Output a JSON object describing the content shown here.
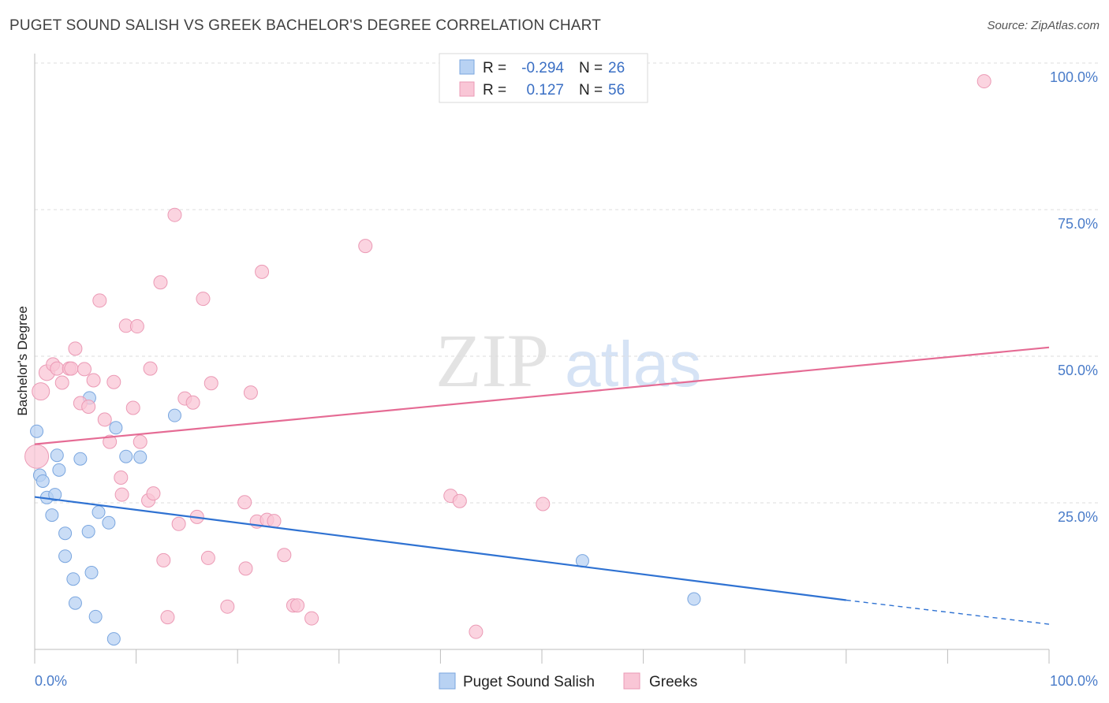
{
  "header": {
    "title": "PUGET SOUND SALISH VS GREEK BACHELOR'S DEGREE CORRELATION CHART",
    "source": "Source: ZipAtlas.com"
  },
  "watermark": {
    "part1": "ZIP",
    "part2": "atlas"
  },
  "legend_top": {
    "rows": [
      {
        "r_label": "R =",
        "r_value": "-0.294",
        "n_label": "N =",
        "n_value": "26",
        "series": "Puget Sound Salish"
      },
      {
        "r_label": "R =",
        "r_value": "0.127",
        "n_label": "N =",
        "n_value": "56",
        "series": "Greeks"
      }
    ]
  },
  "colors": {
    "blue_fill": "#b8d2f3",
    "blue_stroke": "#7aa6df",
    "blue_line": "#2f72d2",
    "pink_fill": "#f9c6d6",
    "pink_stroke": "#eb9ab5",
    "pink_line": "#e56b94",
    "accent_text": "#3a6fc4",
    "grid": "#dddddd"
  },
  "chart_data": {
    "type": "scatter",
    "title": "PUGET SOUND SALISH VS GREEK BACHELOR'S DEGREE CORRELATION CHART",
    "xlabel": "",
    "ylabel": "Bachelor's Degree",
    "xlim": [
      0,
      100
    ],
    "ylim": [
      0,
      100
    ],
    "x_tick_labels": [
      "0.0%",
      "100.0%"
    ],
    "y_ticks": [
      {
        "value": 25,
        "label": "25.0%"
      },
      {
        "value": 50,
        "label": "50.0%"
      },
      {
        "value": 75,
        "label": "75.0%"
      },
      {
        "value": 100,
        "label": "100.0%"
      }
    ],
    "grid": true,
    "legend_position": "bottom",
    "series": [
      {
        "name": "Puget Sound Salish",
        "color": "#b8d2f3",
        "points": [
          {
            "x": 0.2,
            "y": 37.2
          },
          {
            "x": 0.5,
            "y": 29.7
          },
          {
            "x": 0.8,
            "y": 28.7
          },
          {
            "x": 1.2,
            "y": 25.9
          },
          {
            "x": 1.7,
            "y": 22.9
          },
          {
            "x": 2.0,
            "y": 26.4
          },
          {
            "x": 2.2,
            "y": 33.1
          },
          {
            "x": 2.4,
            "y": 30.6
          },
          {
            "x": 3.0,
            "y": 19.8
          },
          {
            "x": 3.0,
            "y": 15.9
          },
          {
            "x": 3.8,
            "y": 12.0
          },
          {
            "x": 4.0,
            "y": 7.9
          },
          {
            "x": 4.5,
            "y": 32.5
          },
          {
            "x": 5.3,
            "y": 20.1
          },
          {
            "x": 5.4,
            "y": 42.9
          },
          {
            "x": 5.6,
            "y": 13.1
          },
          {
            "x": 6.0,
            "y": 5.6
          },
          {
            "x": 6.3,
            "y": 23.4
          },
          {
            "x": 7.3,
            "y": 21.6
          },
          {
            "x": 7.8,
            "y": 1.8
          },
          {
            "x": 8.0,
            "y": 37.8
          },
          {
            "x": 9.0,
            "y": 32.9
          },
          {
            "x": 10.4,
            "y": 32.8
          },
          {
            "x": 13.8,
            "y": 39.9
          },
          {
            "x": 54.0,
            "y": 15.1
          },
          {
            "x": 65.0,
            "y": 8.6
          }
        ]
      },
      {
        "name": "Greeks",
        "color": "#f9c6d6",
        "points": [
          {
            "x": 0.2,
            "y": 32.9
          },
          {
            "x": 0.6,
            "y": 44.0
          },
          {
            "x": 1.2,
            "y": 47.2
          },
          {
            "x": 1.8,
            "y": 48.6
          },
          {
            "x": 2.2,
            "y": 47.9
          },
          {
            "x": 2.7,
            "y": 45.5
          },
          {
            "x": 3.4,
            "y": 47.9
          },
          {
            "x": 3.6,
            "y": 47.9
          },
          {
            "x": 4.0,
            "y": 51.3
          },
          {
            "x": 4.5,
            "y": 42.0
          },
          {
            "x": 4.9,
            "y": 47.8
          },
          {
            "x": 5.3,
            "y": 41.4
          },
          {
            "x": 5.8,
            "y": 45.9
          },
          {
            "x": 6.4,
            "y": 59.5
          },
          {
            "x": 6.9,
            "y": 39.2
          },
          {
            "x": 7.4,
            "y": 35.4
          },
          {
            "x": 7.8,
            "y": 45.6
          },
          {
            "x": 8.5,
            "y": 29.3
          },
          {
            "x": 8.6,
            "y": 26.4
          },
          {
            "x": 9.0,
            "y": 55.2
          },
          {
            "x": 9.7,
            "y": 41.2
          },
          {
            "x": 10.1,
            "y": 55.1
          },
          {
            "x": 10.4,
            "y": 35.4
          },
          {
            "x": 11.2,
            "y": 25.4
          },
          {
            "x": 11.4,
            "y": 47.9
          },
          {
            "x": 11.7,
            "y": 26.6
          },
          {
            "x": 12.4,
            "y": 62.6
          },
          {
            "x": 12.7,
            "y": 15.2
          },
          {
            "x": 13.1,
            "y": 5.5
          },
          {
            "x": 13.8,
            "y": 74.1
          },
          {
            "x": 14.2,
            "y": 21.4
          },
          {
            "x": 14.8,
            "y": 42.8
          },
          {
            "x": 15.6,
            "y": 42.1
          },
          {
            "x": 16.0,
            "y": 22.6
          },
          {
            "x": 16.6,
            "y": 59.8
          },
          {
            "x": 17.1,
            "y": 15.6
          },
          {
            "x": 17.4,
            "y": 45.4
          },
          {
            "x": 19.0,
            "y": 7.3
          },
          {
            "x": 20.7,
            "y": 25.1
          },
          {
            "x": 20.8,
            "y": 13.8
          },
          {
            "x": 21.3,
            "y": 43.8
          },
          {
            "x": 21.9,
            "y": 21.8
          },
          {
            "x": 22.4,
            "y": 64.4
          },
          {
            "x": 22.9,
            "y": 22.1
          },
          {
            "x": 23.6,
            "y": 21.9
          },
          {
            "x": 24.6,
            "y": 16.1
          },
          {
            "x": 25.5,
            "y": 7.5
          },
          {
            "x": 25.9,
            "y": 7.5
          },
          {
            "x": 27.3,
            "y": 5.3
          },
          {
            "x": 32.6,
            "y": 68.8
          },
          {
            "x": 41.0,
            "y": 26.2
          },
          {
            "x": 41.9,
            "y": 25.3
          },
          {
            "x": 43.5,
            "y": 3.0
          },
          {
            "x": 50.1,
            "y": 24.8
          },
          {
            "x": 56.7,
            "y": 100.0
          },
          {
            "x": 93.6,
            "y": 96.9
          }
        ]
      }
    ],
    "trend_lines": [
      {
        "series": "Puget Sound Salish",
        "x0": 0,
        "y0": 26.0,
        "x1": 80,
        "y1": 8.4,
        "dash_from_x": 80,
        "dash_to_x": 100,
        "dash_to_y": 4.3
      },
      {
        "series": "Greeks",
        "x0": 0,
        "y0": 35.0,
        "x1": 100,
        "y1": 51.5
      }
    ]
  }
}
